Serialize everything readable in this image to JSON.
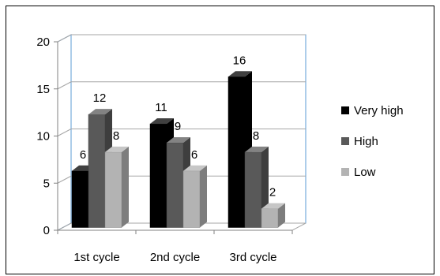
{
  "chart_data": {
    "type": "bar",
    "subtype": "3d-clustered-column",
    "title": "",
    "xlabel": "",
    "ylabel": "",
    "categories": [
      "1st cycle",
      "2nd cycle",
      "3rd cycle"
    ],
    "series": [
      {
        "name": "Very high",
        "values": [
          6,
          11,
          16
        ],
        "color": "#000000"
      },
      {
        "name": "High",
        "values": [
          12,
          9,
          8
        ],
        "color": "#595959"
      },
      {
        "name": "Low",
        "values": [
          8,
          6,
          2
        ],
        "color": "#b3b3b3"
      }
    ],
    "ylim": [
      0,
      20
    ],
    "yticks": [
      0,
      5,
      10,
      15,
      20
    ],
    "grid": true,
    "gridline_color": "#a6a6a6",
    "wall_edge_color": "#5b9bd5",
    "legend_position": "right",
    "data_labels": true
  }
}
